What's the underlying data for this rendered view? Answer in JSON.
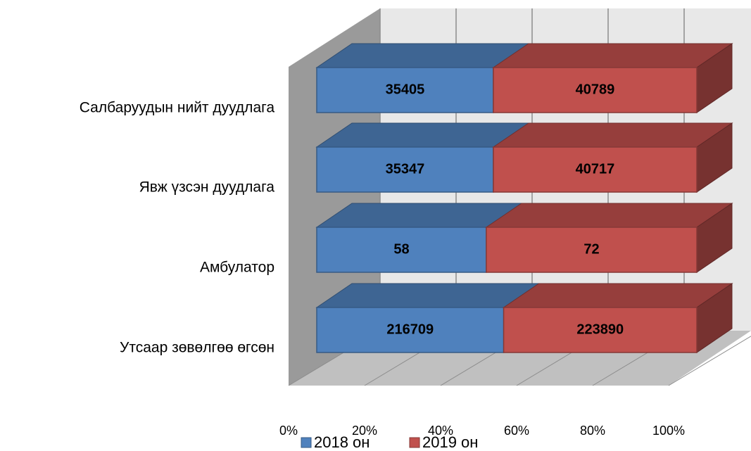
{
  "chart_data": {
    "type": "bar",
    "orientation": "horizontal",
    "stacking": "percent",
    "three_d": true,
    "categories": [
      "Салбаруудын нийт дуудлага",
      "Явж үзсэн дуудлага",
      "Амбулатор",
      "Утсаар зөвөлгөө өгсөн"
    ],
    "series": [
      {
        "name": "2018 он",
        "color": "#4f81bd",
        "values": [
          35405,
          35347,
          58,
          216709
        ]
      },
      {
        "name": "2019 он",
        "color": "#c0504d",
        "values": [
          40789,
          40717,
          72,
          223890
        ]
      }
    ],
    "xlim": [
      0,
      100
    ],
    "xticks": [
      {
        "value": 0,
        "label": "0%"
      },
      {
        "value": 20,
        "label": "20%"
      },
      {
        "value": 40,
        "label": "40%"
      },
      {
        "value": 60,
        "label": "60%"
      },
      {
        "value": 80,
        "label": "80%"
      },
      {
        "value": 100,
        "label": "100%"
      }
    ],
    "grid": true,
    "legend": "bottom"
  }
}
